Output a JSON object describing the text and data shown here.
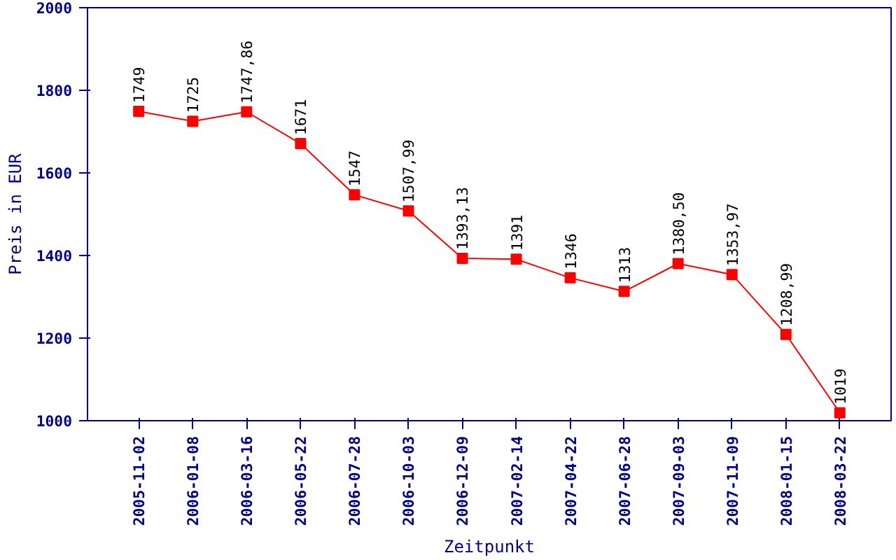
{
  "chart_data": {
    "type": "line",
    "xlabel": "Zeitpunkt",
    "ylabel": "Preis in EUR",
    "categories": [
      "2005-11-02",
      "2006-01-08",
      "2006-03-16",
      "2006-05-22",
      "2006-07-28",
      "2006-10-03",
      "2006-12-09",
      "2007-02-14",
      "2007-04-22",
      "2007-06-28",
      "2007-09-03",
      "2007-11-09",
      "2008-01-15",
      "2008-03-22"
    ],
    "series": [
      {
        "color": "#ff0000",
        "values": [
          1749,
          1725,
          1747.86,
          1671,
          1547,
          1507.99,
          1393.13,
          1391,
          1346,
          1313,
          1380.5,
          1353.97,
          1208.99,
          1019
        ],
        "value_labels": [
          "1749",
          "1725",
          "1747,86",
          "1671",
          "1547",
          "1507,99",
          "1393,13",
          "1391",
          "1346",
          "1313",
          "1380,50",
          "1353,97",
          "1208,99",
          "1019"
        ]
      }
    ],
    "ylim": [
      1000,
      2000
    ],
    "yticks": [
      1000,
      1200,
      1400,
      1600,
      1800,
      2000
    ],
    "marker": "square",
    "line_style": "solid"
  }
}
